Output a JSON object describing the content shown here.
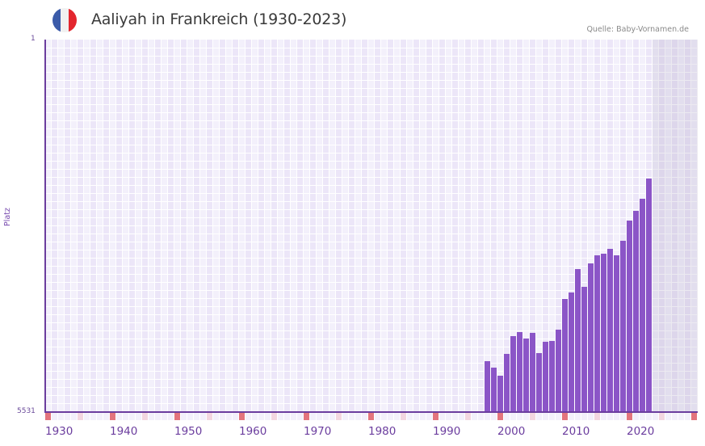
{
  "header": {
    "title": "Aaliyah in Frankreich (1930-2023)",
    "source": "Quelle: Baby-Vornamen.de",
    "flag_colors": [
      "#3b5ba9",
      "#f1f1f1",
      "#e3262e"
    ]
  },
  "colors": {
    "bar": "#8b55c7",
    "axis": "#6b3d9e",
    "grid_a": "#f3f0fb",
    "grid_b": "#ece6f8",
    "decade_marker": "#e3747d",
    "half_decade_marker": "#f3d6e0",
    "year_marker": "#f3f0fb"
  },
  "chart_data": {
    "type": "bar",
    "title": "Aaliyah in Frankreich (1930-2023)",
    "xlabel": "",
    "ylabel": "Platz",
    "y_inverted": true,
    "ylim": [
      1,
      5531
    ],
    "yticks": [
      "1",
      "5531"
    ],
    "xlim": [
      1930,
      2030
    ],
    "xticks": [
      "1930",
      "1940",
      "1950",
      "1960",
      "1970",
      "1980",
      "1990",
      "2000",
      "2010",
      "2020"
    ],
    "shaded_future_from": 2024,
    "grid": true,
    "legend": null,
    "categories": [
      1998,
      1999,
      2000,
      2001,
      2002,
      2003,
      2004,
      2005,
      2006,
      2007,
      2008,
      2009,
      2010,
      2011,
      2012,
      2013,
      2014,
      2015,
      2016,
      2017,
      2018,
      2019,
      2020,
      2021,
      2022,
      2023
    ],
    "values": [
      4773,
      4869,
      4989,
      4665,
      4400,
      4340,
      4437,
      4352,
      4653,
      4485,
      4473,
      4305,
      3848,
      3752,
      3403,
      3668,
      3319,
      3199,
      3175,
      3103,
      3199,
      2982,
      2694,
      2550,
      2369,
      2069
    ]
  }
}
